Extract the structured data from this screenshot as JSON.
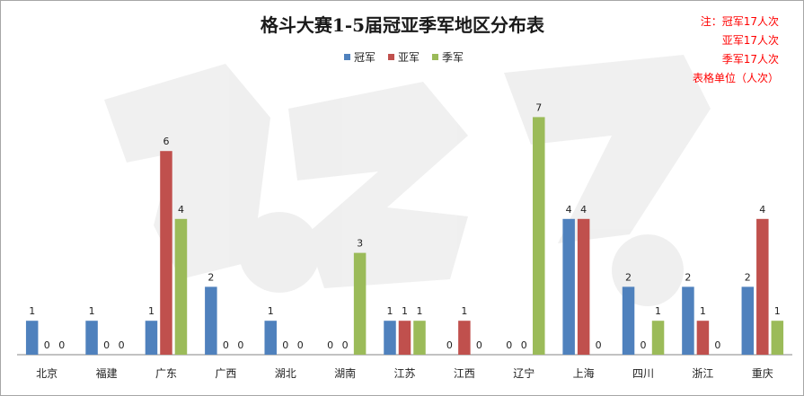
{
  "chart_data": {
    "type": "bar",
    "title": "格斗大赛1-5届冠亚季军地区分布表",
    "categories": [
      "北京",
      "福建",
      "广东",
      "广西",
      "湖北",
      "湖南",
      "江苏",
      "江西",
      "辽宁",
      "上海",
      "四川",
      "浙江",
      "重庆"
    ],
    "series": [
      {
        "name": "冠军",
        "color": "#4f81bd",
        "values": [
          1,
          1,
          1,
          2,
          1,
          0,
          1,
          0,
          0,
          4,
          2,
          2,
          2
        ]
      },
      {
        "name": "亚军",
        "color": "#c0504d",
        "values": [
          0,
          0,
          6,
          0,
          0,
          0,
          1,
          1,
          0,
          4,
          0,
          1,
          4
        ]
      },
      {
        "name": "季军",
        "color": "#9bbb59",
        "values": [
          0,
          0,
          4,
          0,
          0,
          3,
          1,
          0,
          7,
          0,
          1,
          0,
          1
        ]
      }
    ],
    "ylim": [
      0,
      7
    ],
    "grid": false,
    "legend_position": "top-center",
    "data_labels": true
  },
  "notes": [
    "注：冠军17人次",
    "亚军17人次",
    "季军17人次",
    "表格单位（人次）"
  ]
}
